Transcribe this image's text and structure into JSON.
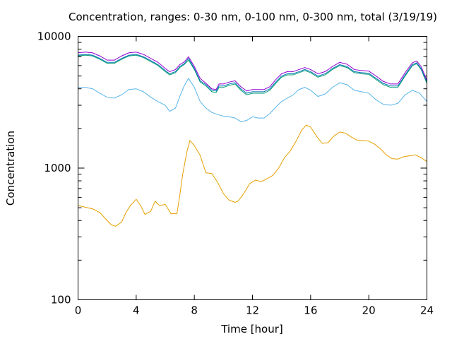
{
  "chart_data": {
    "type": "line",
    "title": "Concentration, ranges: 0-30 nm, 0-100 nm, 0-300 nm, total (3/19/19)",
    "xlabel": "Time [hour]",
    "ylabel": "Concentration",
    "xlim": [
      0,
      24
    ],
    "ylim": [
      100,
      10000
    ],
    "yscale": "log",
    "grid": false,
    "legend": "none",
    "x_ticks": [
      0,
      4,
      8,
      12,
      16,
      20,
      24
    ],
    "y_major_ticks": [
      100,
      1000,
      10000
    ],
    "y_minor_ticks": [
      200,
      300,
      400,
      500,
      600,
      700,
      800,
      900,
      2000,
      3000,
      4000,
      5000,
      6000,
      7000,
      8000,
      9000
    ],
    "series": [
      {
        "color": "#e69f00",
        "points": [
          [
            0,
            520
          ],
          [
            0.5,
            505
          ],
          [
            1,
            490
          ],
          [
            1.5,
            460
          ],
          [
            2,
            400
          ],
          [
            2.3,
            370
          ],
          [
            2.6,
            362
          ],
          [
            3,
            390
          ],
          [
            3.3,
            460
          ],
          [
            3.6,
            520
          ],
          [
            4,
            580
          ],
          [
            4.3,
            520
          ],
          [
            4.6,
            445
          ],
          [
            5,
            470
          ],
          [
            5.3,
            560
          ],
          [
            5.6,
            520
          ],
          [
            6,
            530
          ],
          [
            6.4,
            450
          ],
          [
            6.8,
            450
          ],
          [
            7,
            620
          ],
          [
            7.2,
            900
          ],
          [
            7.5,
            1350
          ],
          [
            7.7,
            1620
          ],
          [
            8,
            1480
          ],
          [
            8.4,
            1250
          ],
          [
            8.8,
            920
          ],
          [
            9.2,
            910
          ],
          [
            9.6,
            780
          ],
          [
            10,
            640
          ],
          [
            10.4,
            570
          ],
          [
            10.8,
            550
          ],
          [
            11,
            560
          ],
          [
            11.4,
            640
          ],
          [
            11.8,
            760
          ],
          [
            12.2,
            810
          ],
          [
            12.6,
            790
          ],
          [
            13,
            830
          ],
          [
            13.4,
            880
          ],
          [
            13.8,
            1000
          ],
          [
            14.2,
            1200
          ],
          [
            14.6,
            1350
          ],
          [
            15,
            1600
          ],
          [
            15.4,
            1950
          ],
          [
            15.7,
            2120
          ],
          [
            16,
            2050
          ],
          [
            16.4,
            1750
          ],
          [
            16.8,
            1540
          ],
          [
            17.2,
            1560
          ],
          [
            17.6,
            1750
          ],
          [
            18,
            1880
          ],
          [
            18.4,
            1840
          ],
          [
            18.8,
            1720
          ],
          [
            19.2,
            1630
          ],
          [
            19.6,
            1620
          ],
          [
            20,
            1600
          ],
          [
            20.4,
            1520
          ],
          [
            20.8,
            1400
          ],
          [
            21.2,
            1260
          ],
          [
            21.6,
            1180
          ],
          [
            22,
            1170
          ],
          [
            22.4,
            1220
          ],
          [
            22.8,
            1240
          ],
          [
            23.2,
            1260
          ],
          [
            23.6,
            1200
          ],
          [
            24,
            1120
          ]
        ]
      },
      {
        "color": "#56b4e9",
        "points": [
          [
            0,
            4100
          ],
          [
            0.5,
            4100
          ],
          [
            1,
            4000
          ],
          [
            1.5,
            3700
          ],
          [
            2,
            3450
          ],
          [
            2.5,
            3400
          ],
          [
            3,
            3600
          ],
          [
            3.5,
            3950
          ],
          [
            4,
            4000
          ],
          [
            4.5,
            3800
          ],
          [
            5,
            3450
          ],
          [
            5.5,
            3200
          ],
          [
            6,
            3000
          ],
          [
            6.3,
            2700
          ],
          [
            6.7,
            2850
          ],
          [
            7,
            3500
          ],
          [
            7.3,
            4200
          ],
          [
            7.6,
            4800
          ],
          [
            8,
            4100
          ],
          [
            8.4,
            3200
          ],
          [
            8.8,
            2850
          ],
          [
            9.2,
            2650
          ],
          [
            9.6,
            2550
          ],
          [
            10,
            2480
          ],
          [
            10.4,
            2450
          ],
          [
            10.8,
            2400
          ],
          [
            11.2,
            2250
          ],
          [
            11.6,
            2300
          ],
          [
            12,
            2450
          ],
          [
            12.4,
            2400
          ],
          [
            12.8,
            2400
          ],
          [
            13.2,
            2600
          ],
          [
            13.6,
            2900
          ],
          [
            14,
            3200
          ],
          [
            14.4,
            3400
          ],
          [
            14.8,
            3600
          ],
          [
            15.2,
            3950
          ],
          [
            15.6,
            4100
          ],
          [
            16,
            3900
          ],
          [
            16.5,
            3500
          ],
          [
            17,
            3650
          ],
          [
            17.5,
            4100
          ],
          [
            18,
            4450
          ],
          [
            18.5,
            4300
          ],
          [
            19,
            3900
          ],
          [
            19.5,
            3800
          ],
          [
            20,
            3700
          ],
          [
            20.5,
            3300
          ],
          [
            21,
            3050
          ],
          [
            21.5,
            3000
          ],
          [
            22,
            3100
          ],
          [
            22.5,
            3600
          ],
          [
            23,
            3900
          ],
          [
            23.5,
            3700
          ],
          [
            24,
            3200
          ]
        ]
      },
      {
        "color": "#009e73",
        "points": [
          [
            0,
            7100
          ],
          [
            0.5,
            7200
          ],
          [
            1,
            7100
          ],
          [
            1.5,
            6700
          ],
          [
            2,
            6250
          ],
          [
            2.5,
            6250
          ],
          [
            3,
            6700
          ],
          [
            3.5,
            7100
          ],
          [
            4,
            7200
          ],
          [
            4.5,
            6900
          ],
          [
            5,
            6450
          ],
          [
            5.5,
            6000
          ],
          [
            6,
            5400
          ],
          [
            6.3,
            5100
          ],
          [
            6.7,
            5300
          ],
          [
            7,
            5800
          ],
          [
            7.3,
            6100
          ],
          [
            7.6,
            6600
          ],
          [
            8,
            5600
          ],
          [
            8.4,
            4500
          ],
          [
            8.8,
            4200
          ],
          [
            9.2,
            3800
          ],
          [
            9.5,
            3750
          ],
          [
            9.7,
            4100
          ],
          [
            10,
            4100
          ],
          [
            10.4,
            4250
          ],
          [
            10.8,
            4350
          ],
          [
            11.2,
            3900
          ],
          [
            11.6,
            3600
          ],
          [
            12,
            3700
          ],
          [
            12.4,
            3700
          ],
          [
            12.8,
            3700
          ],
          [
            13.2,
            3900
          ],
          [
            13.6,
            4400
          ],
          [
            14,
            4900
          ],
          [
            14.4,
            5100
          ],
          [
            14.8,
            5100
          ],
          [
            15.2,
            5300
          ],
          [
            15.6,
            5500
          ],
          [
            16,
            5300
          ],
          [
            16.5,
            4900
          ],
          [
            17,
            5100
          ],
          [
            17.5,
            5600
          ],
          [
            18,
            6000
          ],
          [
            18.5,
            5800
          ],
          [
            19,
            5300
          ],
          [
            19.5,
            5200
          ],
          [
            20,
            5150
          ],
          [
            20.5,
            4700
          ],
          [
            21,
            4300
          ],
          [
            21.5,
            4100
          ],
          [
            22,
            4100
          ],
          [
            22.5,
            5000
          ],
          [
            23,
            6000
          ],
          [
            23.3,
            6200
          ],
          [
            23.6,
            5600
          ],
          [
            24,
            4400
          ]
        ]
      },
      {
        "color": "#0072b2",
        "points": [
          [
            0,
            7200
          ],
          [
            0.5,
            7300
          ],
          [
            1,
            7200
          ],
          [
            1.5,
            6800
          ],
          [
            2,
            6350
          ],
          [
            2.5,
            6350
          ],
          [
            3,
            6800
          ],
          [
            3.5,
            7200
          ],
          [
            4,
            7300
          ],
          [
            4.5,
            7000
          ],
          [
            5,
            6550
          ],
          [
            5.5,
            6100
          ],
          [
            6,
            5500
          ],
          [
            6.3,
            5200
          ],
          [
            6.7,
            5400
          ],
          [
            7,
            5900
          ],
          [
            7.3,
            6200
          ],
          [
            7.6,
            6800
          ],
          [
            8,
            5700
          ],
          [
            8.4,
            4600
          ],
          [
            8.8,
            4300
          ],
          [
            9.2,
            3900
          ],
          [
            9.5,
            3850
          ],
          [
            9.7,
            4200
          ],
          [
            10,
            4200
          ],
          [
            10.4,
            4350
          ],
          [
            10.8,
            4450
          ],
          [
            11.2,
            4000
          ],
          [
            11.6,
            3700
          ],
          [
            12,
            3800
          ],
          [
            12.4,
            3800
          ],
          [
            12.8,
            3800
          ],
          [
            13.2,
            4000
          ],
          [
            13.6,
            4500
          ],
          [
            14,
            5000
          ],
          [
            14.4,
            5200
          ],
          [
            14.8,
            5200
          ],
          [
            15.2,
            5400
          ],
          [
            15.6,
            5600
          ],
          [
            16,
            5400
          ],
          [
            16.5,
            5000
          ],
          [
            17,
            5200
          ],
          [
            17.5,
            5700
          ],
          [
            18,
            6100
          ],
          [
            18.5,
            5900
          ],
          [
            19,
            5400
          ],
          [
            19.5,
            5300
          ],
          [
            20,
            5250
          ],
          [
            20.5,
            4800
          ],
          [
            21,
            4400
          ],
          [
            21.5,
            4200
          ],
          [
            22,
            4200
          ],
          [
            22.5,
            5100
          ],
          [
            23,
            6100
          ],
          [
            23.3,
            6300
          ],
          [
            23.6,
            5700
          ],
          [
            24,
            4500
          ]
        ]
      },
      {
        "color": "#9400d3",
        "points": [
          [
            0,
            7500
          ],
          [
            0.5,
            7600
          ],
          [
            1,
            7500
          ],
          [
            1.5,
            7100
          ],
          [
            2,
            6600
          ],
          [
            2.5,
            6600
          ],
          [
            3,
            7100
          ],
          [
            3.5,
            7500
          ],
          [
            4,
            7600
          ],
          [
            4.5,
            7300
          ],
          [
            5,
            6800
          ],
          [
            5.5,
            6350
          ],
          [
            6,
            5700
          ],
          [
            6.3,
            5400
          ],
          [
            6.7,
            5600
          ],
          [
            7,
            6100
          ],
          [
            7.3,
            6400
          ],
          [
            7.6,
            7000
          ],
          [
            8,
            5900
          ],
          [
            8.4,
            4800
          ],
          [
            8.8,
            4400
          ],
          [
            9.2,
            4000
          ],
          [
            9.5,
            3950
          ],
          [
            9.7,
            4350
          ],
          [
            10,
            4350
          ],
          [
            10.4,
            4500
          ],
          [
            10.8,
            4600
          ],
          [
            11.2,
            4150
          ],
          [
            11.6,
            3850
          ],
          [
            12,
            3950
          ],
          [
            12.4,
            3950
          ],
          [
            12.8,
            3950
          ],
          [
            13.2,
            4150
          ],
          [
            13.6,
            4700
          ],
          [
            14,
            5200
          ],
          [
            14.4,
            5400
          ],
          [
            14.8,
            5400
          ],
          [
            15.2,
            5600
          ],
          [
            15.6,
            5800
          ],
          [
            16,
            5600
          ],
          [
            16.5,
            5200
          ],
          [
            17,
            5400
          ],
          [
            17.5,
            5900
          ],
          [
            18,
            6350
          ],
          [
            18.5,
            6150
          ],
          [
            19,
            5600
          ],
          [
            19.5,
            5500
          ],
          [
            20,
            5450
          ],
          [
            20.5,
            5000
          ],
          [
            21,
            4550
          ],
          [
            21.5,
            4350
          ],
          [
            22,
            4350
          ],
          [
            22.5,
            5300
          ],
          [
            23,
            6300
          ],
          [
            23.3,
            6500
          ],
          [
            23.6,
            5900
          ],
          [
            24,
            4650
          ]
        ]
      }
    ]
  }
}
